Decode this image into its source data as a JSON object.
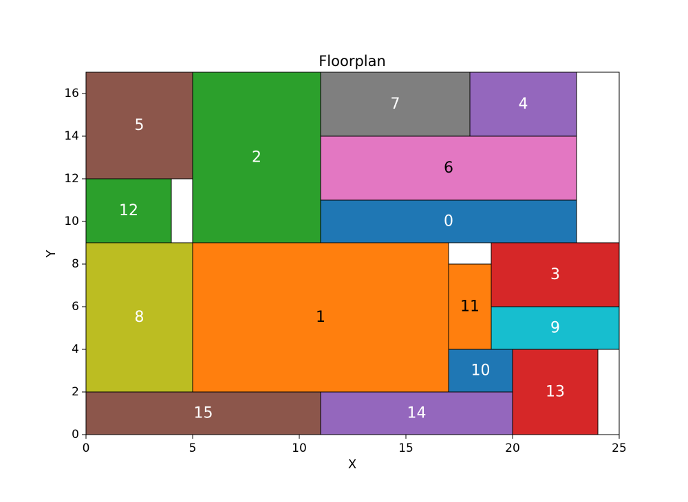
{
  "chart_data": {
    "type": "floorplan",
    "title": "Floorplan",
    "xlabel": "X",
    "ylabel": "Y",
    "xlim": [
      0,
      25
    ],
    "ylim": [
      0,
      17
    ],
    "xticks": [
      0,
      5,
      10,
      15,
      20,
      25
    ],
    "yticks": [
      0,
      2,
      4,
      6,
      8,
      10,
      12,
      14,
      16
    ],
    "grid": false,
    "rooms": [
      {
        "label": "0",
        "x0": 11,
        "y0": 9,
        "x1": 23,
        "y1": 11,
        "color": "#1f77b4",
        "text_color": "#ffffff"
      },
      {
        "label": "1",
        "x0": 5,
        "y0": 2,
        "x1": 17,
        "y1": 9,
        "color": "#ff7f0e",
        "text_color": "#000000"
      },
      {
        "label": "2",
        "x0": 5,
        "y0": 9,
        "x1": 11,
        "y1": 17,
        "color": "#2ca02c",
        "text_color": "#ffffff"
      },
      {
        "label": "3",
        "x0": 19,
        "y0": 6,
        "x1": 25,
        "y1": 9,
        "color": "#d62728",
        "text_color": "#ffffff"
      },
      {
        "label": "4",
        "x0": 18,
        "y0": 14,
        "x1": 23,
        "y1": 17,
        "color": "#9467bd",
        "text_color": "#ffffff"
      },
      {
        "label": "5",
        "x0": 0,
        "y0": 12,
        "x1": 5,
        "y1": 17,
        "color": "#8c564b",
        "text_color": "#ffffff"
      },
      {
        "label": "6",
        "x0": 11,
        "y0": 11,
        "x1": 23,
        "y1": 14,
        "color": "#e377c2",
        "text_color": "#000000"
      },
      {
        "label": "7",
        "x0": 11,
        "y0": 14,
        "x1": 18,
        "y1": 17,
        "color": "#7f7f7f",
        "text_color": "#ffffff"
      },
      {
        "label": "8",
        "x0": 0,
        "y0": 2,
        "x1": 5,
        "y1": 9,
        "color": "#bcbd22",
        "text_color": "#ffffff"
      },
      {
        "label": "9",
        "x0": 19,
        "y0": 4,
        "x1": 25,
        "y1": 6,
        "color": "#17becf",
        "text_color": "#ffffff"
      },
      {
        "label": "10",
        "x0": 17,
        "y0": 2,
        "x1": 20,
        "y1": 4,
        "color": "#1f77b4",
        "text_color": "#ffffff"
      },
      {
        "label": "11",
        "x0": 17,
        "y0": 4,
        "x1": 19,
        "y1": 8,
        "color": "#ff7f0e",
        "text_color": "#000000"
      },
      {
        "label": "12",
        "x0": 0,
        "y0": 9,
        "x1": 4,
        "y1": 12,
        "color": "#2ca02c",
        "text_color": "#ffffff"
      },
      {
        "label": "13",
        "x0": 20,
        "y0": 0,
        "x1": 24,
        "y1": 4,
        "color": "#d62728",
        "text_color": "#ffffff"
      },
      {
        "label": "14",
        "x0": 11,
        "y0": 0,
        "x1": 20,
        "y1": 2,
        "color": "#9467bd",
        "text_color": "#ffffff"
      },
      {
        "label": "15",
        "x0": 0,
        "y0": 0,
        "x1": 11,
        "y1": 2,
        "color": "#8c564b",
        "text_color": "#ffffff"
      }
    ]
  }
}
